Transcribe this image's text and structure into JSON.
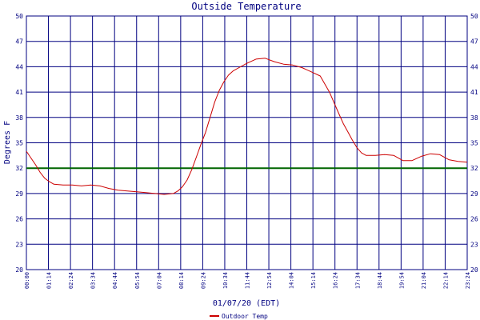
{
  "chart_data": {
    "type": "line",
    "title": "Outside Temperature",
    "ylabel": "Degrees F",
    "xlabel": "01/07/20 (EDT)",
    "ylim": [
      20,
      50
    ],
    "yticks": [
      20,
      23,
      26,
      29,
      32,
      35,
      38,
      41,
      44,
      47,
      50
    ],
    "xticks": [
      "00:00",
      "01:14",
      "02:24",
      "03:34",
      "04:44",
      "05:54",
      "07:04",
      "08:14",
      "09:24",
      "10:34",
      "11:44",
      "12:54",
      "14:04",
      "15:14",
      "16:24",
      "17:34",
      "18:44",
      "19:54",
      "21:04",
      "22:14",
      "23:24"
    ],
    "grid": true,
    "freezing_line": 32,
    "legend_position": "bottom",
    "colors": {
      "series": "#cc0000",
      "grid": "#000080",
      "freezing": "#006600",
      "text": "#000080"
    },
    "series": [
      {
        "name": "Outdoor Temp",
        "x": [
          0,
          0.25,
          0.5,
          0.75,
          1.0,
          1.25,
          1.5,
          2.0,
          2.5,
          3.0,
          3.5,
          4.0,
          4.5,
          5.0,
          5.5,
          6.0,
          6.5,
          7.0,
          7.5,
          8.0,
          8.25,
          8.5,
          8.75,
          9.0,
          9.25,
          9.5,
          9.75,
          10.0,
          10.25,
          10.5,
          10.75,
          11.0,
          11.25,
          11.5,
          12.0,
          12.5,
          13.0,
          13.5,
          14.0,
          14.5,
          15.0,
          15.5,
          16.0,
          16.5,
          17.0,
          17.25,
          17.5,
          17.75,
          18.0,
          18.25,
          18.5,
          19.0,
          19.5,
          20.0,
          20.5,
          21.0,
          21.5,
          22.0,
          22.5,
          23.0,
          23.5,
          24.0
        ],
        "y": [
          34.0,
          33.2,
          32.4,
          31.5,
          30.8,
          30.4,
          30.1,
          30.0,
          30.0,
          29.9,
          30.0,
          29.9,
          29.6,
          29.4,
          29.3,
          29.2,
          29.1,
          29.0,
          28.9,
          29.0,
          29.3,
          29.8,
          30.6,
          31.8,
          33.3,
          34.8,
          36.2,
          38.0,
          39.8,
          41.2,
          42.2,
          43.0,
          43.5,
          43.8,
          44.4,
          44.9,
          45.0,
          44.6,
          44.3,
          44.2,
          43.9,
          43.4,
          42.9,
          41.0,
          38.5,
          37.3,
          36.3,
          35.3,
          34.4,
          33.8,
          33.5,
          33.5,
          33.6,
          33.5,
          32.9,
          32.9,
          33.4,
          33.7,
          33.6,
          33.0,
          32.8,
          32.7
        ]
      }
    ]
  }
}
